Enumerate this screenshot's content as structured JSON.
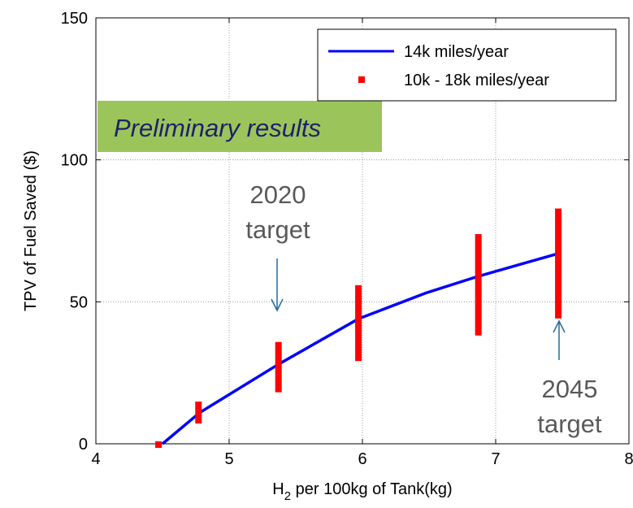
{
  "chart_data": {
    "type": "line",
    "xlabel_main": "H",
    "xlabel_sub": "2",
    "xlabel_rest": " per 100kg of Tank(kg)",
    "ylabel": "TPV of Fuel Saved ($)",
    "xlim": [
      4,
      8
    ],
    "ylim": [
      0,
      150
    ],
    "xticks": [
      4,
      5,
      6,
      7,
      8
    ],
    "yticks": [
      0,
      50,
      100,
      150
    ],
    "grid": true,
    "legend_position": "top-right",
    "series": [
      {
        "name": "14k miles/year",
        "color": "#0000ff",
        "x": [
          4.5,
          4.78,
          5.37,
          5.97,
          6.47,
          6.87,
          7.47
        ],
        "y": [
          0,
          11,
          28,
          44,
          53,
          59,
          67
        ]
      }
    ],
    "ranges": {
      "name": "10k - 18k miles/year",
      "color": "#ff0000",
      "items": [
        {
          "x": 4.47,
          "low": 0,
          "high": 0
        },
        {
          "x": 4.77,
          "low": 8,
          "high": 14
        },
        {
          "x": 5.37,
          "low": 19,
          "high": 35
        },
        {
          "x": 5.97,
          "low": 30,
          "high": 55
        },
        {
          "x": 6.87,
          "low": 39,
          "high": 73
        },
        {
          "x": 7.47,
          "low": 45,
          "high": 82
        }
      ]
    },
    "annotations": {
      "preliminary": {
        "text": "Preliminary results",
        "bg_color": "#9bc55a"
      },
      "target_2020_line1": "2020",
      "target_2020_line2": "target",
      "target_2045_line1": "2045",
      "target_2045_line2": "target",
      "arrow_color": "#1f6aa0",
      "text_color": "#595959"
    }
  }
}
